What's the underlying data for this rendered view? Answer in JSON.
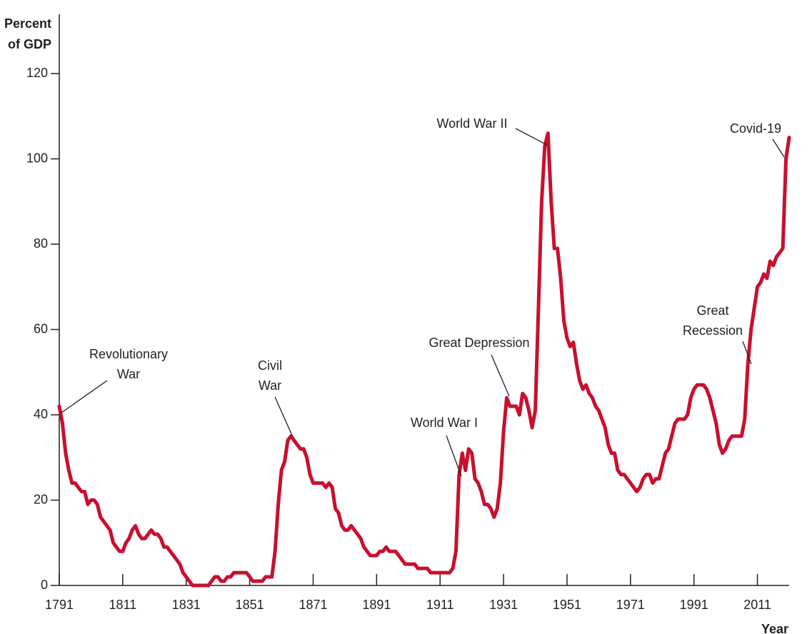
{
  "chart_data": {
    "type": "line",
    "y_label": [
      "Percent",
      "of GDP"
    ],
    "x_label": "Year",
    "color": "#c8102e",
    "xlim": [
      1791,
      2021
    ],
    "ylim": [
      0,
      120
    ],
    "xticks": [
      1791,
      1811,
      1831,
      1851,
      1871,
      1891,
      1911,
      1931,
      1951,
      1971,
      1991,
      2011
    ],
    "yticks": [
      0,
      20,
      40,
      60,
      80,
      100,
      120
    ],
    "x": [
      1791,
      1792,
      1793,
      1794,
      1795,
      1796,
      1797,
      1798,
      1799,
      1800,
      1801,
      1802,
      1803,
      1804,
      1805,
      1806,
      1807,
      1808,
      1809,
      1810,
      1811,
      1812,
      1813,
      1814,
      1815,
      1816,
      1817,
      1818,
      1819,
      1820,
      1821,
      1822,
      1823,
      1824,
      1825,
      1826,
      1827,
      1828,
      1829,
      1830,
      1831,
      1832,
      1833,
      1834,
      1835,
      1836,
      1837,
      1838,
      1839,
      1840,
      1841,
      1842,
      1843,
      1844,
      1845,
      1846,
      1847,
      1848,
      1849,
      1850,
      1851,
      1852,
      1853,
      1854,
      1855,
      1856,
      1857,
      1858,
      1859,
      1860,
      1861,
      1862,
      1863,
      1864,
      1865,
      1866,
      1867,
      1868,
      1869,
      1870,
      1871,
      1872,
      1873,
      1874,
      1875,
      1876,
      1877,
      1878,
      1879,
      1880,
      1881,
      1882,
      1883,
      1884,
      1885,
      1886,
      1887,
      1888,
      1889,
      1890,
      1891,
      1892,
      1893,
      1894,
      1895,
      1896,
      1897,
      1898,
      1899,
      1900,
      1901,
      1902,
      1903,
      1904,
      1905,
      1906,
      1907,
      1908,
      1909,
      1910,
      1911,
      1912,
      1913,
      1914,
      1915,
      1916,
      1917,
      1918,
      1919,
      1920,
      1921,
      1922,
      1923,
      1924,
      1925,
      1926,
      1927,
      1928,
      1929,
      1930,
      1931,
      1932,
      1933,
      1934,
      1935,
      1936,
      1937,
      1938,
      1939,
      1940,
      1941,
      1942,
      1943,
      1944,
      1945,
      1946,
      1947,
      1948,
      1949,
      1950,
      1951,
      1952,
      1953,
      1954,
      1955,
      1956,
      1957,
      1958,
      1959,
      1960,
      1961,
      1962,
      1963,
      1964,
      1965,
      1966,
      1967,
      1968,
      1969,
      1970,
      1971,
      1972,
      1973,
      1974,
      1975,
      1976,
      1977,
      1978,
      1979,
      1980,
      1981,
      1982,
      1983,
      1984,
      1985,
      1986,
      1987,
      1988,
      1989,
      1990,
      1991,
      1992,
      1993,
      1994,
      1995,
      1996,
      1997,
      1998,
      1999,
      2000,
      2001,
      2002,
      2003,
      2004,
      2005,
      2006,
      2007,
      2008,
      2009,
      2010,
      2011,
      2012,
      2013,
      2014,
      2015,
      2016,
      2017,
      2018,
      2019,
      2020,
      2021
    ],
    "values": [
      42,
      38,
      31,
      27,
      24,
      24,
      23,
      22,
      22,
      19,
      20,
      20,
      19,
      16,
      15,
      14,
      13,
      10,
      9,
      8,
      8,
      10,
      11,
      13,
      14,
      12,
      11,
      11,
      12,
      13,
      12,
      12,
      11,
      9,
      9,
      8,
      7,
      6,
      5,
      3,
      2,
      1,
      0,
      0,
      0,
      0,
      0,
      0,
      1,
      2,
      2,
      1,
      1,
      2,
      2,
      3,
      3,
      3,
      3,
      3,
      2,
      1,
      1,
      1,
      1,
      2,
      2,
      2,
      8,
      19,
      27,
      29,
      34,
      35,
      34,
      33,
      32,
      32,
      30,
      26,
      24,
      24,
      24,
      24,
      23,
      24,
      23,
      18,
      17,
      14,
      13,
      13,
      14,
      13,
      12,
      11,
      9,
      8,
      7,
      7,
      7,
      8,
      8,
      9,
      8,
      8,
      8,
      7,
      6,
      5,
      5,
      5,
      5,
      4,
      4,
      4,
      4,
      3,
      3,
      3,
      3,
      3,
      3,
      3,
      4,
      8,
      26,
      31,
      27,
      32,
      31,
      25,
      24,
      22,
      19,
      19,
      18,
      16,
      18,
      24,
      36,
      44,
      42,
      42,
      42,
      40,
      45,
      44,
      41,
      37,
      41,
      65,
      90,
      103,
      106,
      90,
      79,
      79,
      72,
      62,
      58,
      56,
      57,
      52,
      48,
      46,
      47,
      45,
      44,
      42,
      41,
      39,
      37,
      33,
      31,
      31,
      27,
      26,
      26,
      25,
      24,
      23,
      22,
      23,
      25,
      26,
      26,
      24,
      25,
      25,
      28,
      31,
      32,
      35,
      38,
      39,
      39,
      39,
      40,
      44,
      46,
      47,
      47,
      47,
      46,
      44,
      41,
      38,
      33,
      31,
      32,
      34,
      35,
      35,
      35,
      35,
      39,
      52,
      60,
      65,
      70,
      71,
      73,
      72,
      76,
      75,
      77,
      78,
      79,
      100,
      105
    ],
    "annotations": [
      {
        "text": [
          "Revolutionary",
          "War"
        ]
      },
      {
        "text": [
          "Civil",
          "War"
        ]
      },
      {
        "text": [
          "World War I"
        ]
      },
      {
        "text": [
          "Great Depression"
        ]
      },
      {
        "text": [
          "World War II"
        ]
      },
      {
        "text": [
          "Covid-19"
        ]
      },
      {
        "text": [
          "Great",
          "Recession"
        ]
      }
    ]
  }
}
